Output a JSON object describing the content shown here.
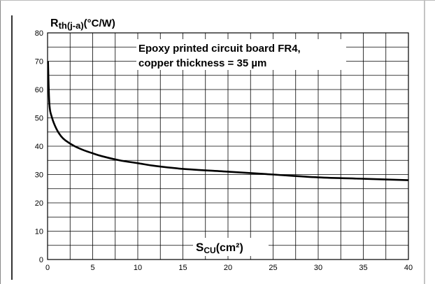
{
  "chart_data": {
    "type": "line",
    "ylabel": {
      "main": "R",
      "sub": "th(j-a)",
      "unit": "(°C/W)"
    },
    "xlabel": {
      "main": "S",
      "sub": "CU",
      "unit": "(cm²)"
    },
    "annotation": [
      "Epoxy printed circuit board FR4,",
      "copper thickness = 35 µm"
    ],
    "xlim": [
      0,
      40
    ],
    "ylim": [
      0,
      80
    ],
    "x_ticks": [
      0,
      5,
      10,
      15,
      20,
      25,
      30,
      35,
      40
    ],
    "x_tick_labels": [
      "0",
      "5",
      "10",
      "15",
      "20",
      "25",
      "30",
      "35",
      "40"
    ],
    "y_ticks": [
      0,
      10,
      20,
      30,
      40,
      50,
      60,
      70,
      80
    ],
    "y_tick_labels": [
      "0",
      "10",
      "20",
      "30",
      "40",
      "50",
      "60",
      "70",
      "80"
    ],
    "grid": true,
    "series": [
      {
        "color": "#000000",
        "x": [
          0.05,
          0.2,
          0.5,
          1,
          1.5,
          2,
          3,
          4,
          5,
          6,
          8,
          10,
          12,
          15,
          20,
          25,
          30,
          35,
          40
        ],
        "y": [
          70,
          55,
          50,
          46,
          43.5,
          42,
          40,
          38.6,
          37.5,
          36.5,
          35,
          34,
          33,
          32,
          31,
          30,
          29,
          28.5,
          28
        ]
      }
    ]
  }
}
